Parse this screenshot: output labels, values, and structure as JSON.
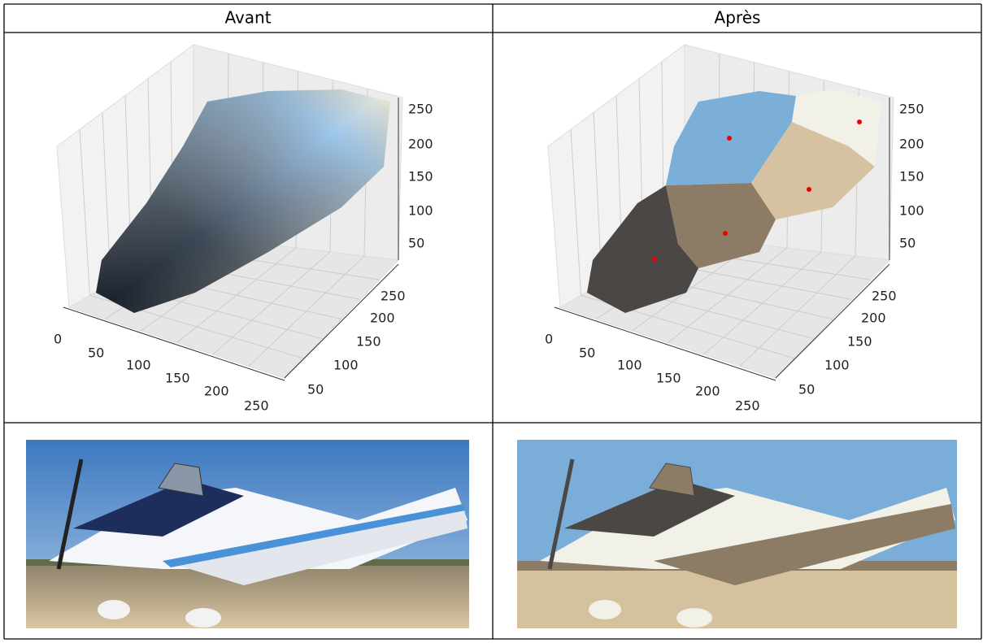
{
  "table": {
    "header": [
      "Avant",
      "Après"
    ]
  },
  "plots": [
    {
      "z_ticks": [
        "250",
        "200",
        "150",
        "100",
        "50"
      ],
      "y_ticks": [
        "250",
        "200",
        "150",
        "100",
        "50"
      ],
      "x_ticks": [
        "0",
        "50",
        "100",
        "150",
        "200",
        "250"
      ]
    },
    {
      "z_ticks": [
        "250",
        "200",
        "150",
        "100",
        "50"
      ],
      "y_ticks": [
        "250",
        "200",
        "150",
        "100",
        "50"
      ],
      "x_ticks": [
        "0",
        "50",
        "100",
        "150",
        "200",
        "250"
      ]
    }
  ]
}
